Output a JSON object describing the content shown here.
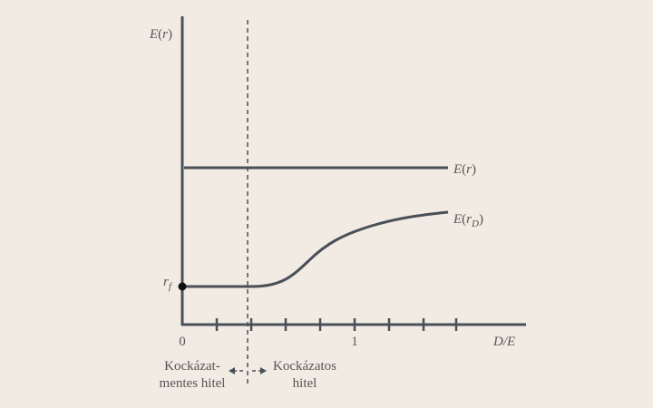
{
  "axes": {
    "y_label": {
      "main": "E",
      "open": "(",
      "var": "r",
      "close": ")"
    },
    "x_label": "D/E",
    "x_origin": "0",
    "x_one": "1",
    "rf": {
      "main": "r",
      "sub": "f"
    }
  },
  "lines": {
    "er": {
      "main": "E",
      "open": "(",
      "var": "r",
      "close": ")"
    },
    "erd": {
      "main": "E",
      "open": "(",
      "var": "r",
      "sub": "D",
      "close": ")"
    }
  },
  "regions": {
    "left": [
      "Kockázat-",
      "mentes hitel"
    ],
    "right": [
      "Kockázatos",
      "hitel"
    ]
  }
}
